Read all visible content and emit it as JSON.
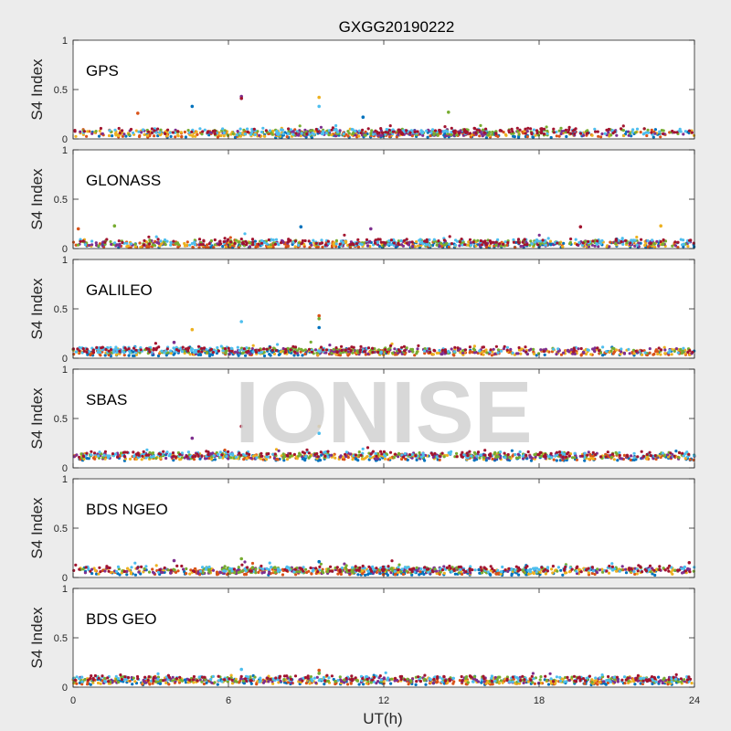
{
  "title": "GXGG20190222",
  "watermark": "IONISE",
  "chart_data": {
    "type": "scatter",
    "title": "GXGG20190222",
    "xlabel": "UT(h)",
    "ylabel": "S4 Index",
    "xlim": [
      0,
      24
    ],
    "ylim": [
      0,
      1
    ],
    "xticks": [
      0,
      6,
      12,
      18,
      24
    ],
    "yticks": [
      0,
      0.5,
      1
    ],
    "ytick_labels": [
      "0",
      "0.5",
      "1"
    ],
    "grid": false,
    "series_colors": [
      "#0072bd",
      "#d95319",
      "#edb120",
      "#7e2f8e",
      "#77ac30",
      "#4dbeee",
      "#a2142f"
    ],
    "panels": [
      {
        "label": "GPS",
        "baseline": 0.06,
        "spikes": [
          {
            "x": 4.6,
            "y": 0.33
          },
          {
            "x": 6.5,
            "y": 0.43
          },
          {
            "x": 6.5,
            "y": 0.41
          },
          {
            "x": 9.5,
            "y": 0.42
          },
          {
            "x": 9.5,
            "y": 0.33
          },
          {
            "x": 2.5,
            "y": 0.26
          },
          {
            "x": 14.5,
            "y": 0.27
          },
          {
            "x": 11.2,
            "y": 0.22
          }
        ]
      },
      {
        "label": "GLONASS",
        "baseline": 0.05,
        "spikes": [
          {
            "x": 0.2,
            "y": 0.2
          },
          {
            "x": 1.6,
            "y": 0.23
          },
          {
            "x": 8.8,
            "y": 0.22
          },
          {
            "x": 11.5,
            "y": 0.2
          },
          {
            "x": 19.6,
            "y": 0.22
          },
          {
            "x": 22.7,
            "y": 0.23
          }
        ]
      },
      {
        "label": "GALILEO",
        "baseline": 0.07,
        "spikes": [
          {
            "x": 4.6,
            "y": 0.29
          },
          {
            "x": 6.5,
            "y": 0.37
          },
          {
            "x": 9.5,
            "y": 0.43
          },
          {
            "x": 9.5,
            "y": 0.4
          },
          {
            "x": 9.5,
            "y": 0.31
          },
          {
            "x": 3.9,
            "y": 0.16
          }
        ]
      },
      {
        "label": "SBAS",
        "baseline": 0.12,
        "spikes": [
          {
            "x": 4.6,
            "y": 0.3
          },
          {
            "x": 6.5,
            "y": 0.42
          },
          {
            "x": 9.5,
            "y": 0.42
          },
          {
            "x": 9.5,
            "y": 0.35
          }
        ]
      },
      {
        "label": "BDS NGEO",
        "baseline": 0.07,
        "spikes": [
          {
            "x": 6.5,
            "y": 0.19
          },
          {
            "x": 9.5,
            "y": 0.16
          },
          {
            "x": 3.9,
            "y": 0.17
          },
          {
            "x": 23.8,
            "y": 0.15
          }
        ]
      },
      {
        "label": "BDS GEO",
        "baseline": 0.07,
        "spikes": [
          {
            "x": 6.5,
            "y": 0.18
          },
          {
            "x": 9.5,
            "y": 0.17
          },
          {
            "x": 9.5,
            "y": 0.14
          }
        ]
      }
    ]
  }
}
